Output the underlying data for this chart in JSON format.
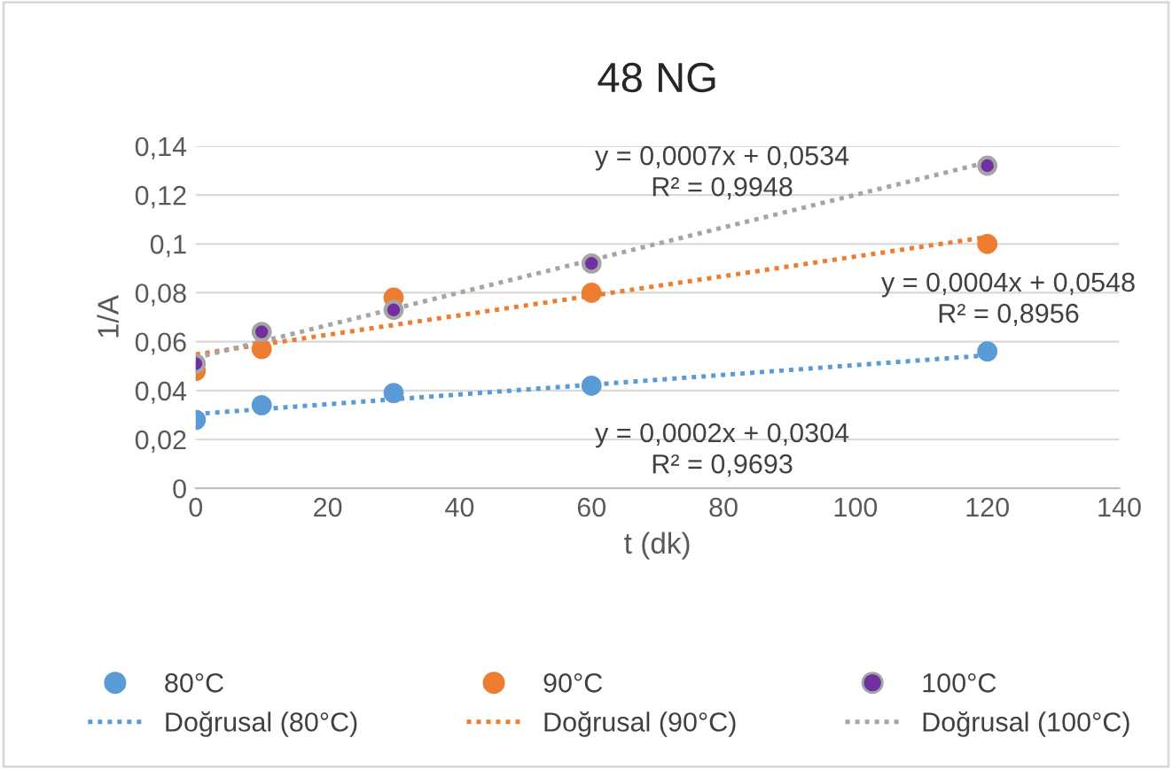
{
  "chart_data": {
    "type": "scatter",
    "title": "48 NG",
    "xlabel": "t (dk)",
    "ylabel": "1/A",
    "series": [
      {
        "name": "80°C",
        "marker": "circle",
        "color": "#5b9bd5",
        "x": [
          0,
          10,
          30,
          60,
          120
        ],
        "values": [
          0.028,
          0.034,
          0.039,
          0.042,
          0.056
        ]
      },
      {
        "name": "90°C",
        "marker": "circle",
        "color": "#ed7d31",
        "x": [
          0,
          10,
          30,
          60,
          120
        ],
        "values": [
          0.048,
          0.057,
          0.078,
          0.08,
          0.1
        ]
      },
      {
        "name": "100°C",
        "marker": "circle",
        "color": "#7030a0",
        "x": [
          0,
          10,
          30,
          60,
          120
        ],
        "values": [
          0.051,
          0.064,
          0.073,
          0.092,
          0.132
        ]
      },
      {
        "name": "Doğrusal (80°C)",
        "type": "line",
        "line_style": "dotted",
        "marker": "none",
        "color": "#5b9bd5",
        "x": [
          0,
          120
        ],
        "values": [
          0.0304,
          0.0544
        ]
      },
      {
        "name": "Doğrusal (90°C)",
        "type": "line",
        "line_style": "dotted",
        "marker": "none",
        "color": "#ed7d31",
        "x": [
          0,
          120
        ],
        "values": [
          0.0548,
          0.1028
        ]
      },
      {
        "name": "Doğrusal (100°C)",
        "type": "line",
        "line_style": "dotted",
        "marker": "none",
        "color": "#a5a5a5",
        "x": [
          0,
          120
        ],
        "values": [
          0.0534,
          0.1334
        ]
      }
    ],
    "annotations": [
      "y = 0,0007x + 0,0534\nR² = 0,9948",
      "y = 0,0004x + 0,0548\nR² = 0,8956",
      "y = 0,0002x + 0,0304\nR² = 0,9693"
    ],
    "xlim": [
      0,
      140
    ],
    "xticks": [
      0,
      20,
      40,
      60,
      80,
      100,
      120,
      140
    ],
    "ylim": [
      0,
      0.14
    ],
    "yticks": [
      {
        "value": 0,
        "label": "0"
      },
      {
        "value": 0.02,
        "label": "0,02"
      },
      {
        "value": 0.04,
        "label": "0,04"
      },
      {
        "value": 0.06,
        "label": "0,06"
      },
      {
        "value": 0.08,
        "label": "0,08"
      },
      {
        "value": 0.1,
        "label": "0,1"
      },
      {
        "value": 0.12,
        "label": "0,12"
      },
      {
        "value": 0.14,
        "label": "0,14"
      }
    ],
    "grid": "y",
    "legend": "bottom"
  }
}
